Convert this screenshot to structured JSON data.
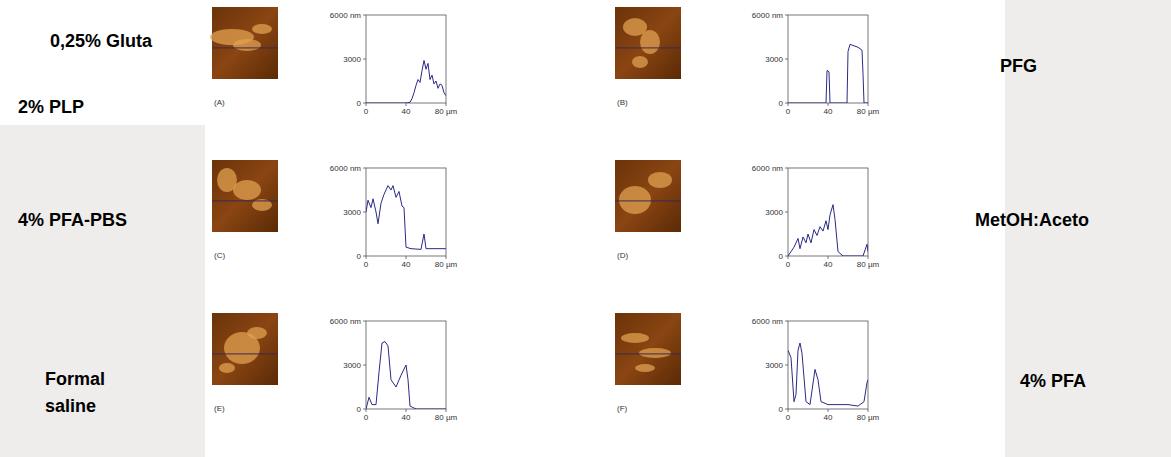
{
  "chart_data": [
    {
      "type": "line",
      "title": "(A)",
      "annotations": [
        "0,25% Gluta",
        "2% PLP"
      ],
      "color": "#2a2a86",
      "xlim": [
        0,
        80
      ],
      "xticks": [
        0,
        40,
        {
          "value": 80,
          "label": "80 µm"
        }
      ],
      "ylim": [
        0,
        6000
      ],
      "yticks": [
        0,
        3000,
        {
          "value": 6000,
          "label": "6000 nm"
        }
      ],
      "grid": false,
      "x": [
        0,
        10,
        20,
        30,
        40,
        44,
        46,
        48,
        50,
        52,
        54,
        56,
        58,
        60,
        62,
        64,
        66,
        68,
        70,
        72,
        74,
        76,
        78,
        80
      ],
      "values": [
        0,
        0,
        0,
        0,
        0,
        50,
        300,
        700,
        1200,
        1600,
        1400,
        2200,
        2900,
        2300,
        2700,
        1600,
        1900,
        1300,
        1500,
        1000,
        1300,
        1200,
        700,
        500
      ]
    },
    {
      "type": "line",
      "title": "(B)",
      "annotations": [
        "PFG"
      ],
      "color": "#2a2a86",
      "xlim": [
        0,
        80
      ],
      "xticks": [
        0,
        40,
        {
          "value": 80,
          "label": "80 µm"
        }
      ],
      "ylim": [
        0,
        6000
      ],
      "yticks": [
        0,
        3000,
        {
          "value": 6000,
          "label": "6000 nm"
        }
      ],
      "grid": false,
      "x": [
        0,
        38,
        39,
        40,
        41,
        42,
        59,
        60,
        62,
        66,
        70,
        74,
        75,
        76,
        80
      ],
      "values": [
        0,
        0,
        2200,
        2200,
        2100,
        0,
        0,
        3500,
        4000,
        3900,
        3800,
        3600,
        2000,
        0,
        0
      ]
    },
    {
      "type": "line",
      "title": "(C)",
      "annotations": [
        "4% PFA-PBS"
      ],
      "color": "#2a2a86",
      "xlim": [
        0,
        80
      ],
      "xticks": [
        0,
        40,
        {
          "value": 80,
          "label": "80 µm"
        }
      ],
      "ylim": [
        0,
        6000
      ],
      "yticks": [
        0,
        3000,
        {
          "value": 6000,
          "label": "6000 nm"
        }
      ],
      "grid": false,
      "x": [
        0,
        2,
        5,
        7,
        10,
        12,
        15,
        18,
        22,
        25,
        27,
        30,
        33,
        36,
        38,
        40,
        45,
        55,
        58,
        60,
        80
      ],
      "values": [
        3000,
        3800,
        3300,
        3900,
        3000,
        2200,
        3600,
        4200,
        4800,
        4500,
        4800,
        4000,
        4400,
        3400,
        3300,
        600,
        500,
        450,
        1500,
        500,
        500
      ]
    },
    {
      "type": "line",
      "title": "(D)",
      "annotations": [
        "MetOH:Aceto"
      ],
      "color": "#2a2a86",
      "xlim": [
        0,
        80
      ],
      "xticks": [
        0,
        40,
        {
          "value": 80,
          "label": "80 µm"
        }
      ],
      "ylim": [
        0,
        6000
      ],
      "yticks": [
        0,
        3000,
        {
          "value": 6000,
          "label": "6000 nm"
        }
      ],
      "grid": false,
      "x": [
        0,
        3,
        6,
        10,
        12,
        15,
        18,
        20,
        23,
        26,
        29,
        32,
        35,
        38,
        40,
        42,
        45,
        47,
        50,
        55,
        75,
        79,
        80
      ],
      "values": [
        0,
        300,
        600,
        1200,
        500,
        1300,
        900,
        1500,
        900,
        1800,
        1400,
        2000,
        1700,
        2400,
        1800,
        2800,
        3500,
        2500,
        300,
        0,
        0,
        800,
        300
      ]
    },
    {
      "type": "line",
      "title": "(E)",
      "annotations": [
        "Formal saline"
      ],
      "color": "#2a2a86",
      "xlim": [
        0,
        80
      ],
      "xticks": [
        0,
        40,
        {
          "value": 80,
          "label": "80 µm"
        }
      ],
      "ylim": [
        0,
        6000
      ],
      "yticks": [
        0,
        3000,
        {
          "value": 6000,
          "label": "6000 nm"
        }
      ],
      "grid": false,
      "x": [
        0,
        3,
        6,
        10,
        13,
        16,
        19,
        22,
        25,
        30,
        35,
        40,
        42,
        44,
        50,
        80
      ],
      "values": [
        0,
        800,
        300,
        300,
        2500,
        4500,
        4600,
        4300,
        2000,
        1500,
        2300,
        3000,
        2000,
        200,
        0,
        0
      ]
    },
    {
      "type": "line",
      "title": "(F)",
      "annotations": [
        "4% PFA"
      ],
      "color": "#2a2a86",
      "xlim": [
        0,
        80
      ],
      "xticks": [
        0,
        40,
        {
          "value": 80,
          "label": "80 µm"
        }
      ],
      "ylim": [
        0,
        6000
      ],
      "yticks": [
        0,
        3000,
        {
          "value": 6000,
          "label": "6000 nm"
        }
      ],
      "grid": false,
      "x": [
        0,
        3,
        6,
        8,
        10,
        12,
        14,
        18,
        22,
        27,
        30,
        33,
        40,
        60,
        70,
        76,
        79,
        80
      ],
      "values": [
        4000,
        3500,
        500,
        1000,
        4000,
        4500,
        3800,
        500,
        300,
        2700,
        2000,
        500,
        300,
        300,
        200,
        500,
        1800,
        2000
      ]
    }
  ]
}
